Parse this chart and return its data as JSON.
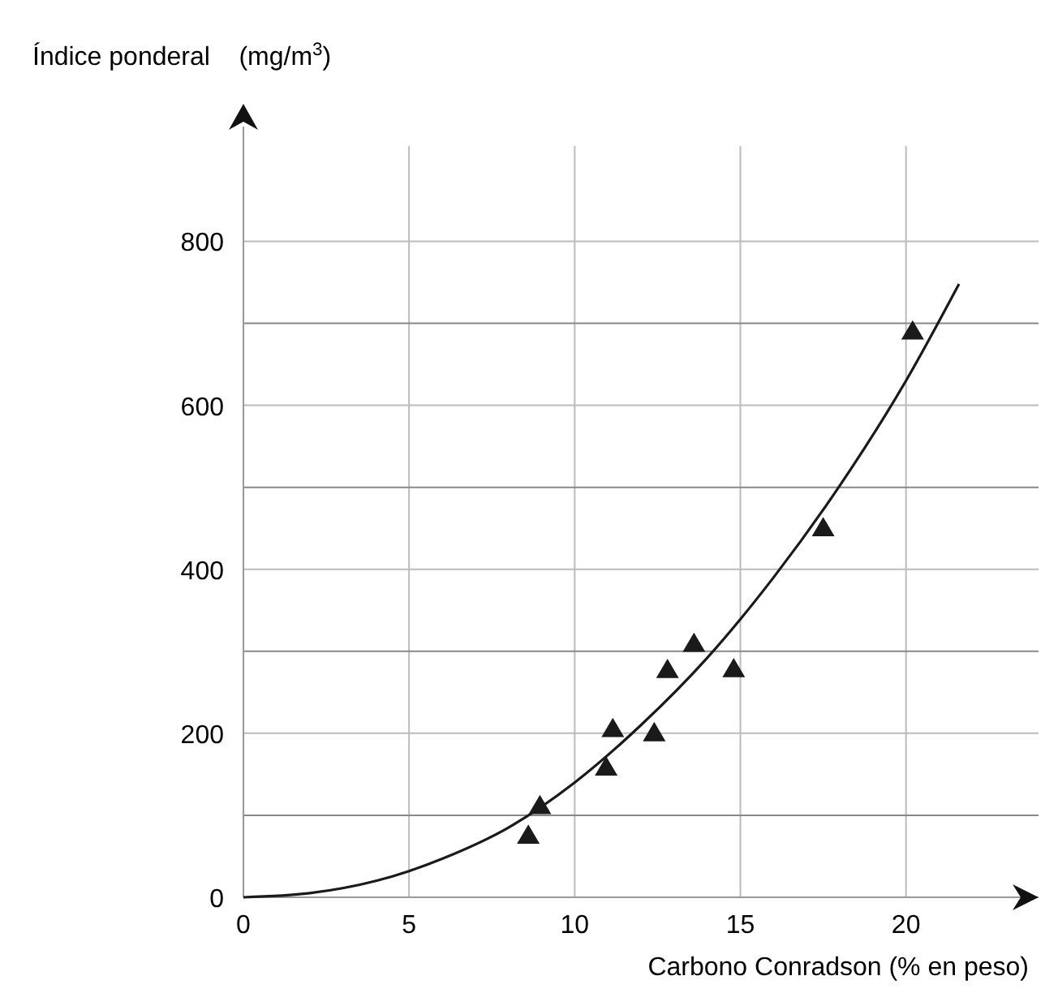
{
  "chart_data": {
    "type": "scatter",
    "xlabel": "Carbono Conradson (% en peso)",
    "ylabel": "Índice ponderal    (mg/m$^{3}$)",
    "xlim": [
      0,
      24
    ],
    "ylim": [
      0,
      940
    ],
    "xticks": [
      0,
      5,
      10,
      15,
      20
    ],
    "yticks": [
      0,
      {
        "value": 100,
        "label": null
      },
      200,
      {
        "value": 300,
        "label": null
      },
      400,
      {
        "value": 500,
        "label": null
      },
      600,
      {
        "value": 700,
        "label": null
      },
      800
    ],
    "grid": true,
    "marker": "triangle",
    "series": [
      {
        "color": "#1a1a1a",
        "x": [
          8.6,
          8.95,
          10.95,
          11.15,
          12.4,
          12.8,
          13.6,
          14.8,
          17.5,
          20.2
        ],
        "values": [
          75,
          111,
          158,
          205,
          200,
          277,
          309,
          278,
          450,
          690
        ]
      },
      {
        "type": "line",
        "color": "#1a1a1a",
        "marker": "none",
        "line_style": "solid",
        "x": [
          0,
          2,
          4,
          5,
          6,
          8,
          10,
          12,
          14,
          16,
          18,
          20,
          21.6
        ],
        "values": [
          0,
          5,
          20,
          32,
          47,
          85,
          140,
          210,
          292,
          390,
          502,
          630,
          748
        ]
      }
    ]
  }
}
